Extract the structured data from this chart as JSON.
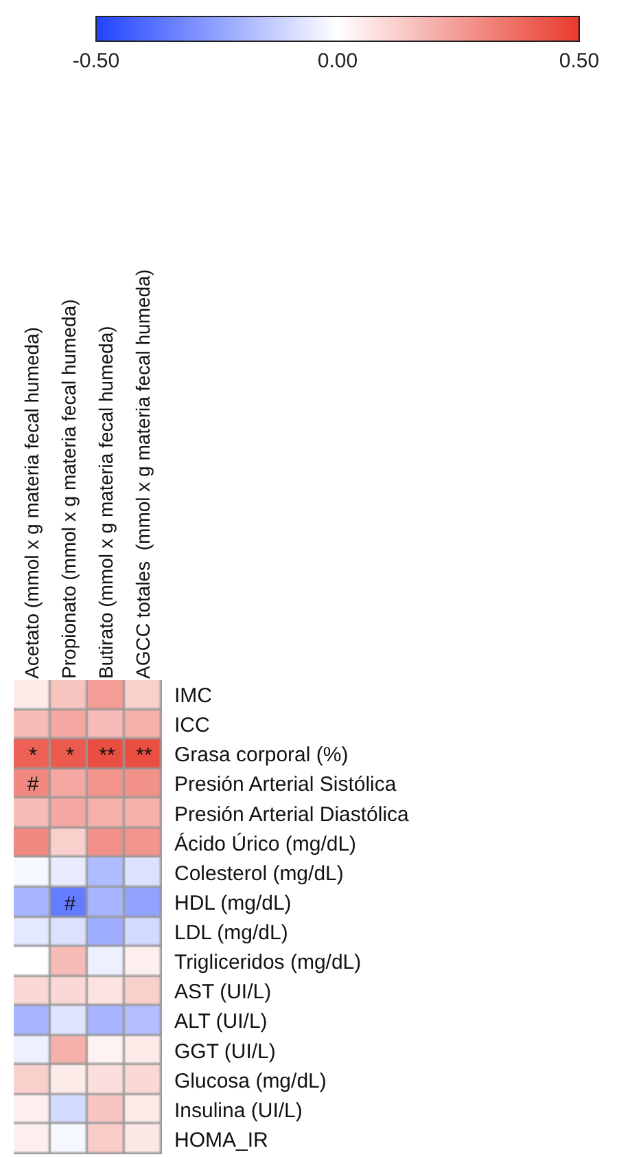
{
  "chart_data": {
    "type": "heatmap",
    "categories": [
      "Acetato (mmol x g materia fecal humeda)",
      "Propionato (mmol x g materia fecal humeda)",
      "Butirato (mmol x g materia fecal humeda)",
      "AGCC totales  (mmol x g materia fecal humeda)"
    ],
    "y_categories": [
      "IMC",
      "ICC",
      "Grasa corporal (%)",
      "Presión Arterial Sistólica",
      "Presión Arterial Diastólica",
      "Ácido Úrico (mg/dL)",
      "Colesterol (mg/dL)",
      "HDL (mg/dL)",
      "LDL (mg/dL)",
      "Trigliceridos (mg/dL)",
      "AST (UI/L)",
      "ALT (UI/L)",
      "GGT (UI/L)",
      "Glucosa (mg/dL)",
      "Insulina (UI/L)",
      "HOMA_IR"
    ],
    "cells": [
      [
        0.05,
        0.15,
        0.25,
        0.12
      ],
      [
        0.17,
        0.22,
        0.17,
        0.2
      ],
      [
        0.4,
        0.42,
        0.45,
        0.45
      ],
      [
        0.3,
        0.22,
        0.27,
        0.28
      ],
      [
        0.17,
        0.22,
        0.2,
        0.2
      ],
      [
        0.3,
        0.12,
        0.28,
        0.27
      ],
      [
        -0.02,
        -0.05,
        -0.18,
        -0.08
      ],
      [
        -0.2,
        -0.35,
        -0.2,
        -0.25
      ],
      [
        -0.06,
        -0.08,
        -0.22,
        -0.1
      ],
      [
        0.0,
        0.17,
        -0.04,
        0.04
      ],
      [
        0.1,
        0.1,
        0.07,
        0.12
      ],
      [
        -0.2,
        -0.07,
        -0.2,
        -0.17
      ],
      [
        -0.04,
        0.2,
        0.03,
        0.05
      ],
      [
        0.12,
        0.05,
        0.08,
        0.1
      ],
      [
        0.04,
        -0.1,
        0.15,
        0.05
      ],
      [
        0.04,
        -0.02,
        0.13,
        0.06
      ]
    ],
    "cell_labels": [
      [
        null,
        null,
        null,
        null
      ],
      [
        null,
        null,
        null,
        null
      ],
      [
        "*",
        "*",
        "**",
        "**"
      ],
      [
        "#",
        null,
        null,
        null
      ],
      [
        null,
        null,
        null,
        null
      ],
      [
        null,
        null,
        null,
        null
      ],
      [
        null,
        null,
        null,
        null
      ],
      [
        null,
        "#",
        null,
        null
      ],
      [
        null,
        null,
        null,
        null
      ],
      [
        null,
        null,
        null,
        null
      ],
      [
        null,
        null,
        null,
        null
      ],
      [
        null,
        null,
        null,
        null
      ],
      [
        null,
        null,
        null,
        null
      ],
      [
        null,
        null,
        null,
        null
      ],
      [
        null,
        null,
        null,
        null
      ],
      [
        null,
        null,
        null,
        null
      ]
    ],
    "clim": [
      -0.5,
      0.5
    ],
    "cticks": [
      {
        "value": -0.5,
        "label": "-0.50"
      },
      {
        "value": 0,
        "label": "0.00"
      },
      {
        "value": 0.5,
        "label": "0.50"
      }
    ]
  }
}
